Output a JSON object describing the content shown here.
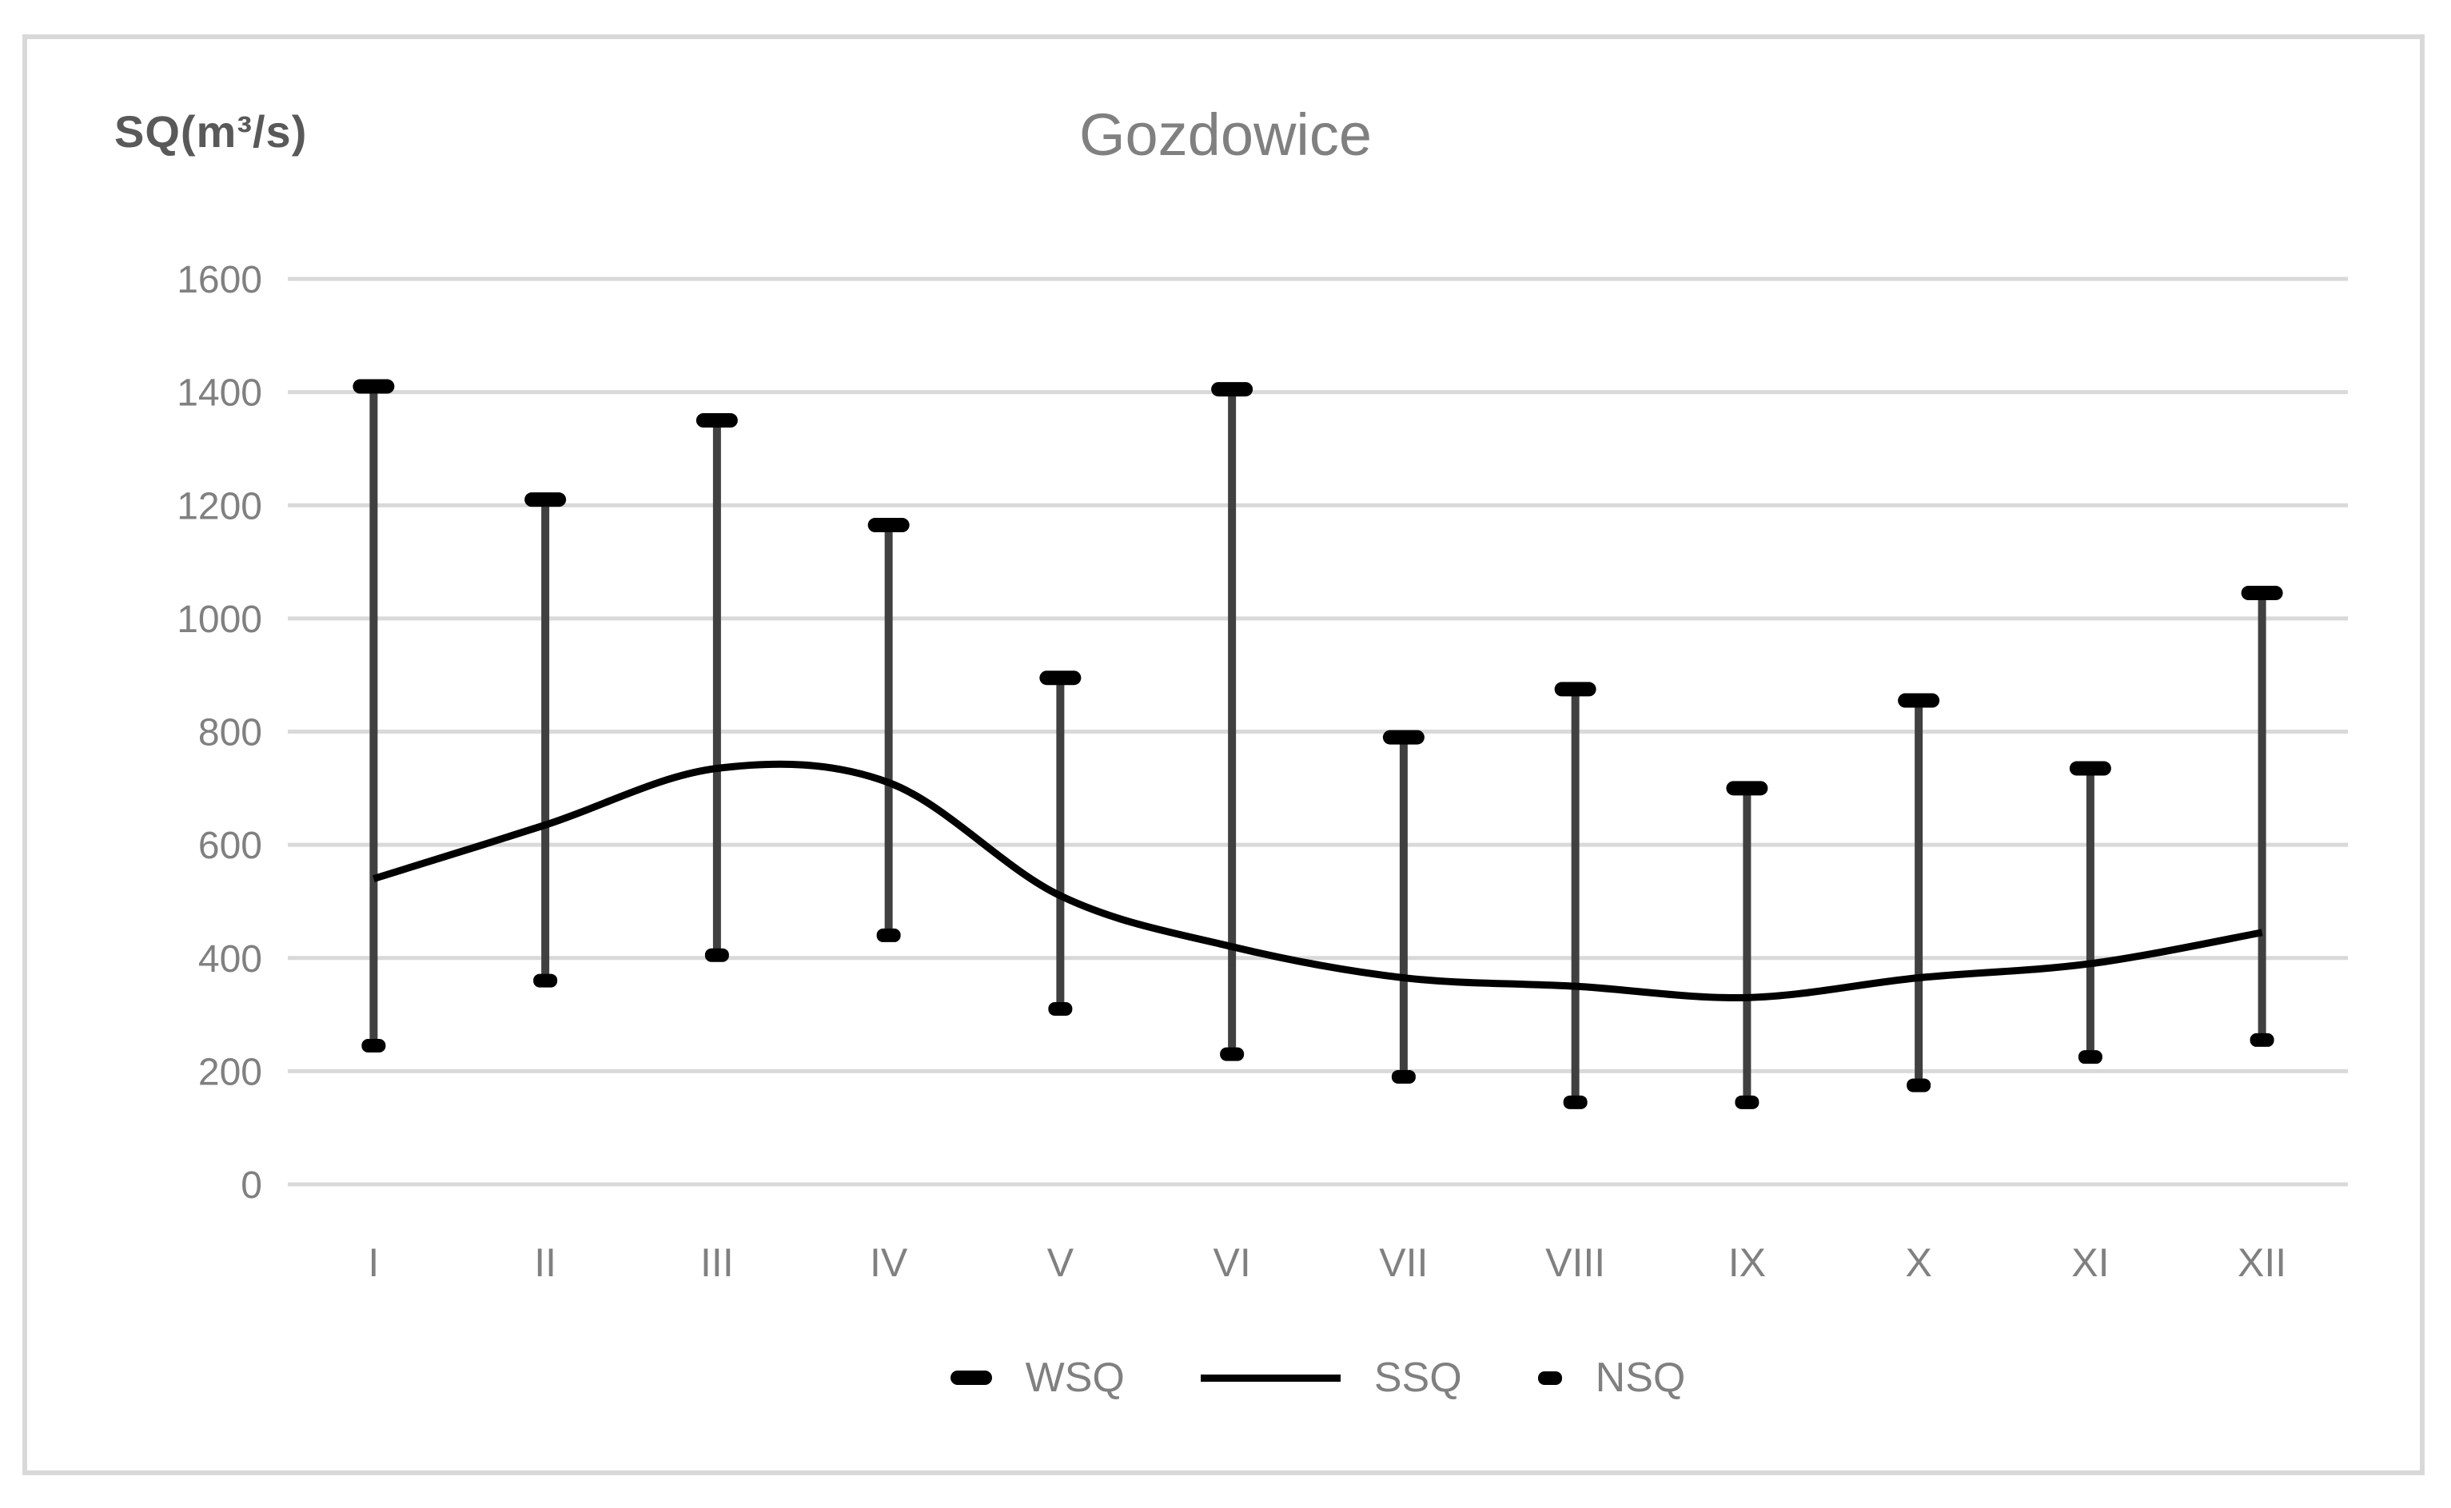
{
  "chart_data": {
    "type": "line",
    "title": "Gozdowice",
    "ylabel": "SQ(m³/s)",
    "xlabel": "",
    "categories": [
      "I",
      "II",
      "III",
      "IV",
      "V",
      "VI",
      "VII",
      "VIII",
      "IX",
      "X",
      "XI",
      "XII"
    ],
    "series": [
      {
        "name": "WSQ",
        "style": "dash-marker",
        "values": [
          1410,
          1210,
          1350,
          1165,
          895,
          1405,
          790,
          875,
          700,
          855,
          735,
          1045
        ]
      },
      {
        "name": "SSQ",
        "style": "smooth-line",
        "values": [
          540,
          635,
          735,
          710,
          510,
          420,
          365,
          350,
          330,
          365,
          390,
          445
        ]
      },
      {
        "name": "NSQ",
        "style": "dash-marker",
        "values": [
          245,
          360,
          405,
          440,
          310,
          230,
          190,
          145,
          145,
          175,
          225,
          255
        ]
      }
    ],
    "high_low_lines": true,
    "ylim": [
      0,
      1600
    ],
    "yticks": [
      0,
      200,
      400,
      600,
      800,
      1000,
      1200,
      1400,
      1600
    ],
    "grid": "horizontal",
    "legend_position": "bottom",
    "colors": {
      "series_line": "#000000",
      "marker": "#000000",
      "high_low_line": "#404040",
      "gridline": "#d9d9d9",
      "tick_label": "#808080",
      "title": "#808080",
      "axis_label": "#595959",
      "frame_border": "#d9d9d9",
      "background": "#ffffff"
    }
  }
}
